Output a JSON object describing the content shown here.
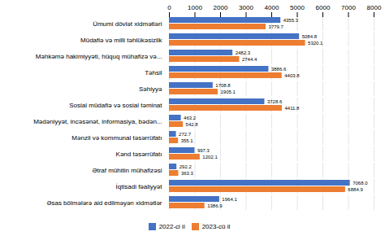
{
  "chart_data": {
    "type": "bar",
    "orientation": "horizontal",
    "categories": [
      "Ümumi dövlət xidmətləri",
      "Müdafiə və milli təhlükəsizlik",
      "Məhkəmə hakimiyyəti, hüquq mühafizə və...",
      "Təhsil",
      "Səhiyyə",
      "Sosial müdafiə və sosial təminat",
      "Mədəniyyət, incəsənət, informasiya, bədən...",
      "Mənzil və kommunal təsərrüfatı",
      "Kənd təsərrüfatı",
      "Ətraf mühitin mühafizəsi",
      "İqtisadi fəaliyyət",
      "Əsas bölmələrə aid edilməyən xidmətlər"
    ],
    "series": [
      {
        "name": "2022-ci il",
        "color": "#4472c4",
        "values": [
          4355.3,
          5084.8,
          2482.3,
          3886.6,
          1708.8,
          3728.6,
          463.2,
          272.7,
          997.3,
          292.2,
          7068.0,
          1964.1
        ],
        "value_labels": [
          "4355.3",
          "5084.8",
          "2482.3",
          "3886.6",
          "1708.8",
          "3728.6",
          "463.2",
          "272.7",
          "997.3",
          "292.2",
          "7068.0",
          "1964.1"
        ]
      },
      {
        "name": "2023-cü il",
        "color": "#ed7d31",
        "values": [
          3779.7,
          5320.1,
          2744.4,
          4403.8,
          1905.1,
          4411.8,
          542.8,
          355.1,
          1202.1,
          363.3,
          6884.9,
          1386.9
        ],
        "value_labels": [
          "3779.7",
          "5320.1",
          "2744.4",
          "4403.8",
          "1905.1",
          "4411.8",
          "542.8",
          "355.1",
          "1202.1",
          "363.3",
          "6884.9",
          "1386.9"
        ]
      }
    ],
    "xlim": [
      0,
      8000
    ],
    "xticks": [
      0,
      1000,
      2000,
      3000,
      4000,
      5000,
      6000,
      7000,
      8000
    ],
    "grid": true,
    "data_labels": true,
    "legend": "bottom"
  }
}
